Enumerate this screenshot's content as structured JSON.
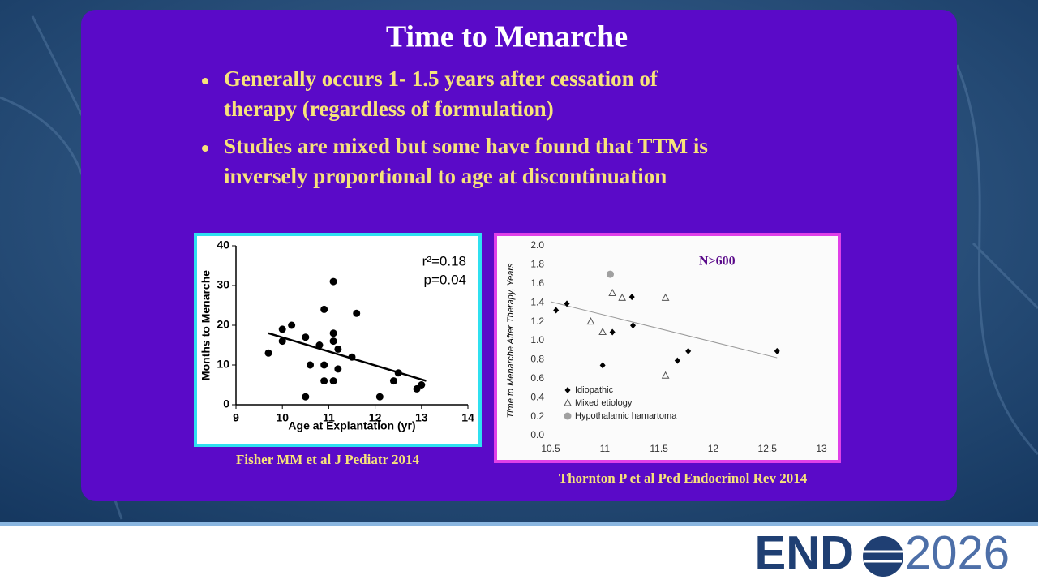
{
  "slide": {
    "title": "Time to Menarche",
    "bullets": [
      [
        "Generally occurs 1- 1.5 years after cessation of",
        "therapy (regardless of formulation)"
      ],
      [
        "Studies are mixed but some have found that TTM is",
        "inversely proportional to age at discontinuation"
      ]
    ],
    "captions": [
      "Fisher MM et al J Pediatr 2014",
      "Thornton P et al Ped Endocrinol Rev 2014"
    ],
    "logo": {
      "left": "END",
      "right": "2026"
    }
  },
  "chart_data": [
    {
      "type": "scatter",
      "x_label": "Age at Explantation (yr)",
      "y_label": "Months to Menarche",
      "annotations": [
        "r²=0.18",
        "p=0.04"
      ],
      "x": [
        9.7,
        10.0,
        10.0,
        10.2,
        10.5,
        10.5,
        10.6,
        10.8,
        10.9,
        10.9,
        10.9,
        11.1,
        11.1,
        11.1,
        11.1,
        11.2,
        11.2,
        11.5,
        11.6,
        12.1,
        12.4,
        12.5,
        12.9,
        13.0
      ],
      "values": [
        13,
        16,
        19,
        20,
        17,
        2,
        10,
        15,
        6,
        24,
        10,
        31,
        18,
        16,
        6,
        14,
        9,
        12,
        23,
        2,
        6,
        8,
        4,
        5
      ],
      "color": "#000000",
      "marker": "circle",
      "trendline": {
        "x": [
          9.7,
          13.1
        ],
        "values": [
          18,
          6
        ]
      },
      "xlim": [
        9,
        14
      ],
      "xticks": [
        9,
        10,
        11,
        12,
        13,
        14
      ],
      "ylim": [
        0,
        40
      ],
      "yticks": [
        0,
        10,
        20,
        30,
        40
      ]
    },
    {
      "type": "scatter",
      "y_label": "Time to Menarche After Therapy, Years",
      "annotations": [
        "N>600"
      ],
      "legend": "lower left",
      "series": [
        {
          "name": "Idiopathic",
          "color": "#000000",
          "marker": "diamond",
          "x": [
            10.55,
            10.65,
            10.98,
            11.07,
            11.25,
            11.26,
            11.67,
            11.77,
            12.59
          ],
          "values": [
            1.32,
            1.39,
            0.74,
            1.09,
            1.46,
            1.16,
            0.79,
            0.89,
            0.89
          ]
        },
        {
          "name": "Mixed etiology",
          "color": "#555555",
          "marker": "triangle",
          "x": [
            10.87,
            10.98,
            11.07,
            11.16,
            11.56,
            11.56
          ],
          "values": [
            1.2,
            1.09,
            1.5,
            1.45,
            1.45,
            0.63
          ]
        },
        {
          "name": "Hypothalamic hamartoma",
          "color": "#a0a0a0",
          "marker": "circle",
          "x": [
            11.05
          ],
          "values": [
            1.7
          ]
        }
      ],
      "trendline": {
        "x": [
          10.5,
          12.59
        ],
        "values": [
          1.41,
          0.82
        ]
      },
      "xlim": [
        10.5,
        13
      ],
      "xticks": [
        10.5,
        11,
        11.5,
        12,
        12.5,
        13
      ],
      "ylim": [
        0,
        2
      ],
      "yticks": [
        {
          "value": 0,
          "label": "0.0"
        },
        0.2,
        0.4,
        0.6,
        0.8,
        {
          "value": 1,
          "label": "1.0"
        },
        1.2,
        1.4,
        1.6,
        1.8,
        {
          "value": 2,
          "label": "2.0"
        }
      ]
    }
  ]
}
